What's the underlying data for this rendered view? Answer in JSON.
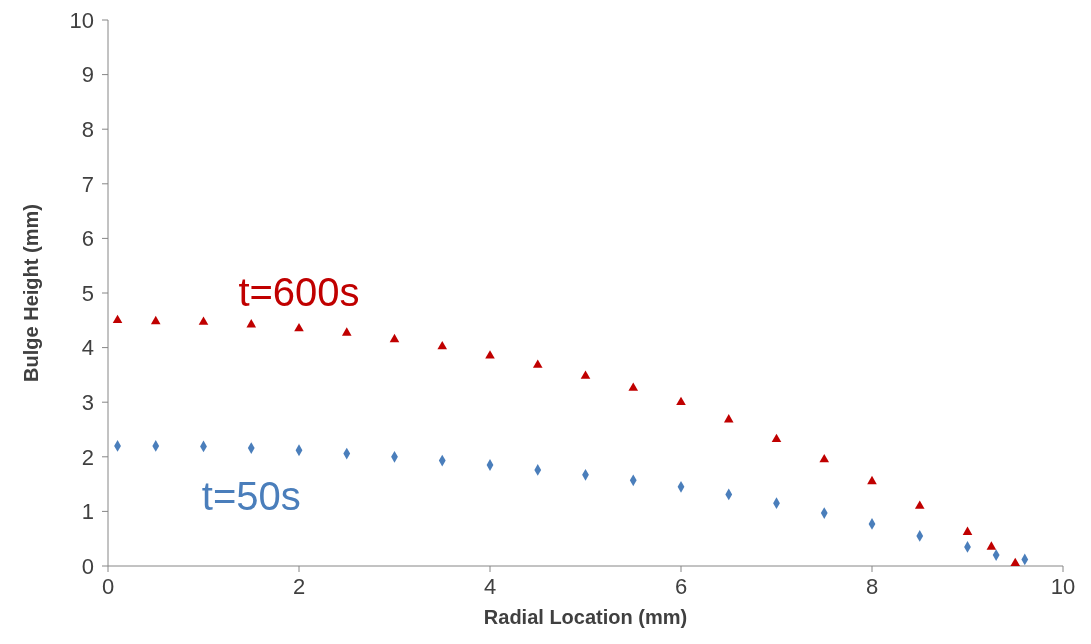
{
  "chart_data": {
    "type": "scatter",
    "xlabel": "Radial Location (mm)",
    "ylabel": "Bulge Height (mm)",
    "xlim": [
      0,
      10
    ],
    "xticks": [
      0,
      2,
      4,
      6,
      8,
      10
    ],
    "ylim": [
      0,
      10
    ],
    "yticks": [
      0,
      1,
      2,
      3,
      4,
      5,
      6,
      7,
      8,
      9,
      10
    ],
    "grid": false,
    "series": [
      {
        "name": "t=600s",
        "color": "#c00000",
        "marker": "triangle",
        "x": [
          0.1,
          0.5,
          1,
          1.5,
          2,
          2.5,
          3,
          3.5,
          4,
          4.5,
          5,
          5.5,
          6,
          6.5,
          7,
          7.5,
          8,
          8.5,
          9,
          9.25,
          9.5
        ],
        "values": [
          4.5,
          4.48,
          4.47,
          4.42,
          4.35,
          4.27,
          4.15,
          4.02,
          3.85,
          3.68,
          3.48,
          3.26,
          3.0,
          2.68,
          2.32,
          1.95,
          1.55,
          1.1,
          0.62,
          0.35,
          0.05
        ]
      },
      {
        "name": "t=50s",
        "color": "#4a7ebb",
        "marker": "diamond",
        "x": [
          0.1,
          0.5,
          1,
          1.5,
          2,
          2.5,
          3,
          3.5,
          4,
          4.5,
          5,
          5.5,
          6,
          6.5,
          7,
          7.5,
          8,
          8.5,
          9,
          9.3,
          9.6
        ],
        "values": [
          2.2,
          2.2,
          2.19,
          2.16,
          2.12,
          2.06,
          2.0,
          1.93,
          1.85,
          1.76,
          1.67,
          1.57,
          1.45,
          1.31,
          1.15,
          0.97,
          0.77,
          0.55,
          0.35,
          0.2,
          0.12
        ]
      }
    ]
  }
}
